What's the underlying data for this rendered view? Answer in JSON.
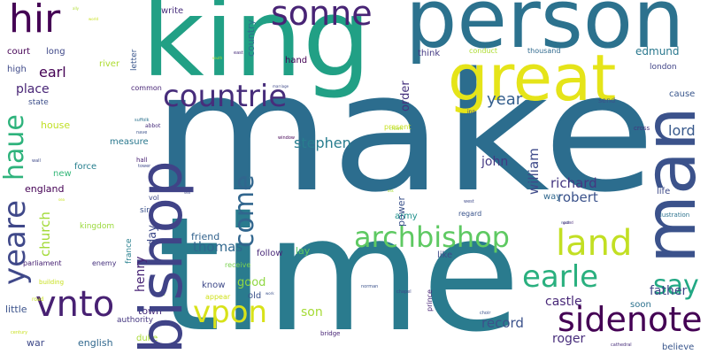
{
  "words": [
    {
      "text": "make",
      "color": "#2c6d8e",
      "vertical": false
    },
    {
      "text": "time",
      "color": "#2a7b8e",
      "vertical": false
    },
    {
      "text": "king",
      "color": "#21a085",
      "vertical": false
    },
    {
      "text": "person",
      "color": "#2c728e",
      "vertical": false
    },
    {
      "text": "bishop",
      "color": "#404387",
      "vertical": true
    },
    {
      "text": "man",
      "color": "#3b528b",
      "vertical": true
    },
    {
      "text": "great",
      "color": "#e5e419",
      "vertical": false
    },
    {
      "text": "sonne",
      "color": "#482475",
      "vertical": false
    },
    {
      "text": "hir",
      "color": "#440154",
      "vertical": false
    },
    {
      "text": "countrie",
      "color": "#472d7b",
      "vertical": false
    },
    {
      "text": "come",
      "color": "#31668e",
      "vertical": true
    },
    {
      "text": "haue",
      "color": "#2eb37c",
      "vertical": true
    },
    {
      "text": "yeare",
      "color": "#3f4889",
      "vertical": true
    },
    {
      "text": "archbishop",
      "color": "#5ec962",
      "vertical": false
    },
    {
      "text": "land",
      "color": "#c2df23",
      "vertical": false
    },
    {
      "text": "say",
      "color": "#22a884",
      "vertical": false
    },
    {
      "text": "earle",
      "color": "#2ab07f",
      "vertical": false
    },
    {
      "text": "vpon",
      "color": "#d8e219",
      "vertical": false
    },
    {
      "text": "vnto",
      "color": "#482173",
      "vertical": false
    },
    {
      "text": "sidenote",
      "color": "#440154",
      "vertical": false
    },
    {
      "text": "year",
      "color": "#355f8d",
      "vertical": false
    },
    {
      "text": "lord",
      "color": "#38598c",
      "vertical": false
    },
    {
      "text": "stephen",
      "color": "#287d8e",
      "vertical": false
    },
    {
      "text": "john",
      "color": "#443983",
      "vertical": false
    },
    {
      "text": "william",
      "color": "#3e4a89",
      "vertical": true
    },
    {
      "text": "order",
      "color": "#46327e",
      "vertical": true
    },
    {
      "text": "richard",
      "color": "#453781",
      "vertical": false
    },
    {
      "text": "robert",
      "color": "#3b528b",
      "vertical": false
    },
    {
      "text": "father",
      "color": "#3f4788",
      "vertical": false
    },
    {
      "text": "record",
      "color": "#3b528b",
      "vertical": false
    },
    {
      "text": "castle",
      "color": "#482878",
      "vertical": false
    },
    {
      "text": "thomas",
      "color": "#31688e",
      "vertical": false
    },
    {
      "text": "henry",
      "color": "#482576",
      "vertical": true
    },
    {
      "text": "good",
      "color": "#90d743",
      "vertical": false
    },
    {
      "text": "son",
      "color": "#a5db36",
      "vertical": false
    },
    {
      "text": "roger",
      "color": "#472d7b",
      "vertical": false
    },
    {
      "text": "edmund",
      "color": "#2a788e",
      "vertical": false
    },
    {
      "text": "church",
      "color": "#a2da37",
      "vertical": true
    },
    {
      "text": "earl",
      "color": "#440154",
      "vertical": false
    },
    {
      "text": "place",
      "color": "#482576",
      "vertical": false
    },
    {
      "text": "house",
      "color": "#c0df25",
      "vertical": false
    },
    {
      "text": "england",
      "color": "#440154",
      "vertical": false
    },
    {
      "text": "new",
      "color": "#35b779",
      "vertical": false
    },
    {
      "text": "force",
      "color": "#277f8e",
      "vertical": false
    },
    {
      "text": "measure",
      "color": "#2a788e",
      "vertical": false
    },
    {
      "text": "day",
      "color": "#3e4a89",
      "vertical": true
    },
    {
      "text": "town",
      "color": "#472c7a",
      "vertical": false
    },
    {
      "text": "soon",
      "color": "#2c728e",
      "vertical": false
    },
    {
      "text": "life",
      "color": "#3e4a89",
      "vertical": false
    },
    {
      "text": "way",
      "color": "#31688e",
      "vertical": false
    },
    {
      "text": "cause",
      "color": "#39568c",
      "vertical": false
    },
    {
      "text": "send",
      "color": "#3b528b",
      "vertical": false
    },
    {
      "text": "london",
      "color": "#414487",
      "vertical": false
    },
    {
      "text": "thousand",
      "color": "#306a8e",
      "vertical": false
    },
    {
      "text": "think",
      "color": "#443a83",
      "vertical": false
    },
    {
      "text": "conduct",
      "color": "#addc30",
      "vertical": false
    },
    {
      "text": "hand",
      "color": "#440154",
      "vertical": false
    },
    {
      "text": "country",
      "color": "#2d708e",
      "vertical": true
    },
    {
      "text": "write",
      "color": "#472e7c",
      "vertical": false
    },
    {
      "text": "letter",
      "color": "#39568c",
      "vertical": true
    },
    {
      "text": "long",
      "color": "#3f4889",
      "vertical": false
    },
    {
      "text": "court",
      "color": "#440154",
      "vertical": false
    },
    {
      "text": "high",
      "color": "#3e4989",
      "vertical": false
    },
    {
      "text": "state",
      "color": "#3d4e8a",
      "vertical": false
    },
    {
      "text": "river",
      "color": "#addc30",
      "vertical": false
    },
    {
      "text": "common",
      "color": "#482576",
      "vertical": false
    },
    {
      "text": "present",
      "color": "#c8e020",
      "vertical": false
    },
    {
      "text": "power",
      "color": "#3b528b",
      "vertical": true
    },
    {
      "text": "army",
      "color": "#21918c",
      "vertical": false
    },
    {
      "text": "regard",
      "color": "#3a548c",
      "vertical": false
    },
    {
      "text": "like",
      "color": "#3e4989",
      "vertical": false
    },
    {
      "text": "follow",
      "color": "#482878",
      "vertical": false
    },
    {
      "text": "lay",
      "color": "#5ec962",
      "vertical": false
    },
    {
      "text": "friend",
      "color": "#33638d",
      "vertical": false
    },
    {
      "text": "know",
      "color": "#3e4989",
      "vertical": false
    },
    {
      "text": "old",
      "color": "#3b528b",
      "vertical": false
    },
    {
      "text": "receive",
      "color": "#7ad151",
      "vertical": false
    },
    {
      "text": "appear",
      "color": "#d0e11c",
      "vertical": false
    },
    {
      "text": "france",
      "color": "#277f8e",
      "vertical": true
    },
    {
      "text": "sir",
      "color": "#3b528b",
      "vertical": false
    },
    {
      "text": "vol",
      "color": "#3e4989",
      "vertical": false
    },
    {
      "text": "kingdom",
      "color": "#9bd93c",
      "vertical": false
    },
    {
      "text": "enemy",
      "color": "#46327e",
      "vertical": false
    },
    {
      "text": "parliament",
      "color": "#482374",
      "vertical": false
    },
    {
      "text": "building",
      "color": "#c8e020",
      "vertical": false
    },
    {
      "text": "little",
      "color": "#3b528b",
      "vertical": false
    },
    {
      "text": "authority",
      "color": "#453781",
      "vertical": false
    },
    {
      "text": "war",
      "color": "#3e4989",
      "vertical": false
    },
    {
      "text": "english",
      "color": "#31688e",
      "vertical": false
    },
    {
      "text": "duke",
      "color": "#a8db34",
      "vertical": false
    },
    {
      "text": "prince",
      "color": "#482576",
      "vertical": true
    },
    {
      "text": "illustration",
      "color": "#2c728e",
      "vertical": false
    },
    {
      "text": "believe",
      "color": "#39568c",
      "vertical": false
    },
    {
      "text": "cross",
      "color": "#46327e",
      "vertical": false
    },
    {
      "text": "abbot",
      "color": "#472d7b",
      "vertical": false
    },
    {
      "text": "hall",
      "color": "#482173",
      "vertical": false
    },
    {
      "text": "tower",
      "color": "#3e4a89",
      "vertical": false
    },
    {
      "text": "suffolk",
      "color": "#2c728e",
      "vertical": false
    },
    {
      "text": "norman",
      "color": "#3b528b",
      "vertical": false
    },
    {
      "text": "chapel",
      "color": "#3e4a89",
      "vertical": false
    },
    {
      "text": "bridge",
      "color": "#482576",
      "vertical": false
    },
    {
      "text": "choir",
      "color": "#3b528b",
      "vertical": false
    },
    {
      "text": "cathedral",
      "color": "#472d7b",
      "vertical": false
    },
    {
      "text": "inn",
      "color": "#3e4989",
      "vertical": false
    },
    {
      "text": "window",
      "color": "#440154",
      "vertical": false
    },
    {
      "text": "nave",
      "color": "#3b528b",
      "vertical": false
    },
    {
      "text": "mile",
      "color": "#8fd744",
      "vertical": false
    },
    {
      "text": "road",
      "color": "#c8e020",
      "vertical": false
    },
    {
      "text": "century",
      "color": "#c8e020",
      "vertical": false
    },
    {
      "text": "south",
      "color": "#a5db36",
      "vertical": false
    },
    {
      "text": "east",
      "color": "#472d7b",
      "vertical": false
    },
    {
      "text": "west",
      "color": "#3e4989",
      "vertical": false
    },
    {
      "text": "north",
      "color": "#3b528b",
      "vertical": false
    },
    {
      "text": "marriage",
      "color": "#3e4989",
      "vertical": false
    },
    {
      "text": "wall",
      "color": "#3e4989",
      "vertical": false
    },
    {
      "text": "ally",
      "color": "#addc30",
      "vertical": false
    },
    {
      "text": "world",
      "color": "#c8e020",
      "vertical": false
    },
    {
      "text": "crown",
      "color": "#addc30",
      "vertical": false
    },
    {
      "text": "work",
      "color": "#3b528b",
      "vertical": false
    },
    {
      "text": "guard",
      "color": "#482878",
      "vertical": false
    },
    {
      "text": "ask",
      "color": "#a5db36",
      "vertical": false
    },
    {
      "text": "sea",
      "color": "#c8e020",
      "vertical": false
    },
    {
      "text": "sea",
      "color": "#3e4989",
      "vertical": false
    }
  ]
}
